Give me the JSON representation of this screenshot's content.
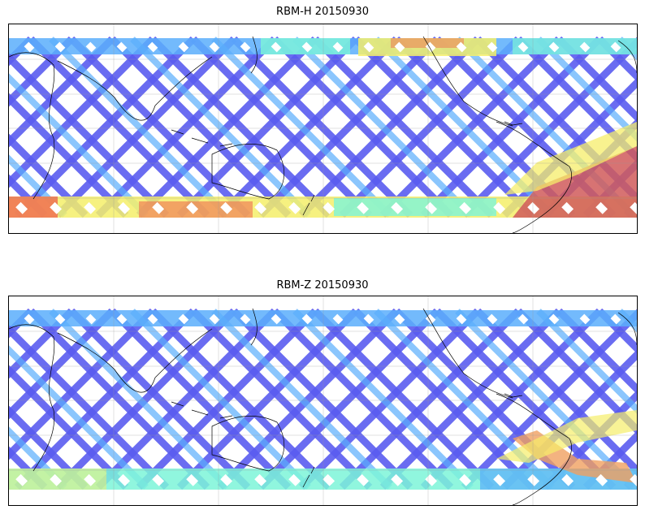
{
  "panels": [
    {
      "title": "RBM-H 20150930",
      "colors": {
        "low": "#5a5cf0",
        "mid_low": "#5aaefc",
        "mid": "#7df5d8",
        "mid_high": "#f5ee6a",
        "high": "#f07050",
        "very_high": "#d05a5a"
      },
      "bands": [
        "south-polar-high",
        "north-polar-mid",
        "south-america-high"
      ]
    },
    {
      "title": "RBM-Z 20150930",
      "colors": {
        "low": "#5a5cf0",
        "mid_low": "#5aaefc",
        "mid": "#7df5d8",
        "mid_high": "#f5ee6a",
        "high": "#f0a060"
      },
      "bands": [
        "south-polar-mid",
        "north-polar-low",
        "south-america-mid"
      ]
    }
  ],
  "map": {
    "projection": "equirectangular",
    "center_longitude": 160,
    "gridlines": true
  }
}
